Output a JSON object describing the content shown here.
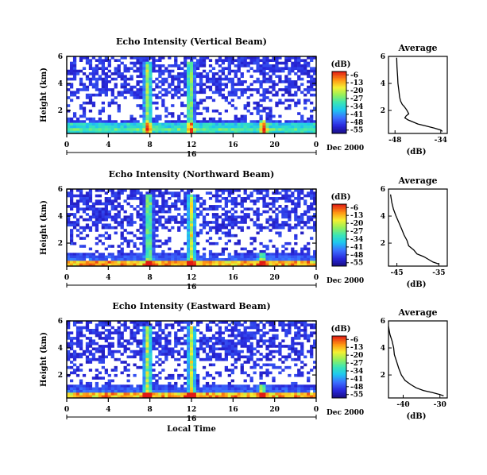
{
  "chart_data": [
    {
      "type": "heatmap",
      "title": "Echo Intensity (Vertical Beam)",
      "ylabel": "Height (km)",
      "x_ticks": [
        "0",
        "4",
        "8",
        "12",
        "16",
        "20",
        "0"
      ],
      "y_ticks": [
        "6",
        "4",
        "2"
      ],
      "xlim": [
        0,
        24
      ],
      "ylim": [
        0.3,
        6
      ],
      "date_marker": "16",
      "date_label": "Dec 2000",
      "colorbar": {
        "unit": "(dB)",
        "ticks": [
          "-6",
          "-13",
          "-20",
          "-27",
          "-34",
          "-41",
          "-48",
          "-55"
        ],
        "range": [
          -58,
          -3
        ]
      },
      "features": {
        "strong_bands_km": [
          0.55,
          0.9
        ],
        "spikes_hours": [
          7.8,
          11.9,
          18.9
        ]
      },
      "profile": {
        "title": "Average",
        "xlabel": "(dB)",
        "x_ticks": [
          "-48",
          "-34"
        ],
        "y_ticks": [
          "6",
          "4",
          "2"
        ],
        "xlim": [
          -50,
          -32
        ],
        "ylim": [
          0.3,
          6
        ],
        "points": [
          [
            -47.5,
            5.9
          ],
          [
            -47.4,
            5.2
          ],
          [
            -47.2,
            4.5
          ],
          [
            -47.1,
            4.0
          ],
          [
            -46.8,
            3.4
          ],
          [
            -46.6,
            3.0
          ],
          [
            -46.3,
            2.7
          ],
          [
            -45.8,
            2.45
          ],
          [
            -45.2,
            2.3
          ],
          [
            -44.6,
            2.1
          ],
          [
            -44.2,
            1.95
          ],
          [
            -43.8,
            1.75
          ],
          [
            -44.6,
            1.6
          ],
          [
            -45.0,
            1.45
          ],
          [
            -44.0,
            1.3
          ],
          [
            -42.5,
            1.15
          ],
          [
            -41.0,
            1.0
          ],
          [
            -38.5,
            0.85
          ],
          [
            -36.0,
            0.7
          ],
          [
            -34.0,
            0.55
          ],
          [
            -33.5,
            0.45
          ]
        ]
      }
    },
    {
      "type": "heatmap",
      "title": "Echo Intensity (Northward Beam)",
      "ylabel": "Height (km)",
      "x_ticks": [
        "0",
        "4",
        "8",
        "12",
        "16",
        "20",
        "0"
      ],
      "y_ticks": [
        "6",
        "4",
        "2"
      ],
      "xlim": [
        0,
        24
      ],
      "ylim": [
        0.3,
        6
      ],
      "date_marker": "16",
      "date_label": "Dec 2000",
      "colorbar": {
        "unit": "(dB)",
        "ticks": [
          "-6",
          "-13",
          "-20",
          "-27",
          "-34",
          "-41",
          "-48",
          "-55"
        ],
        "range": [
          -58,
          -3
        ]
      },
      "features": {
        "strong_bands_km": [
          0.5
        ],
        "spikes_hours": [
          7.9,
          12.0,
          18.8
        ]
      },
      "profile": {
        "title": "Average",
        "xlabel": "(dB)",
        "x_ticks": [
          "-45",
          "-35"
        ],
        "y_ticks": [
          "6",
          "4",
          "2"
        ],
        "xlim": [
          -47,
          -33
        ],
        "ylim": [
          0.3,
          6
        ],
        "points": [
          [
            -46.5,
            5.6
          ],
          [
            -46.2,
            5.0
          ],
          [
            -45.8,
            4.5
          ],
          [
            -45.2,
            4.0
          ],
          [
            -44.5,
            3.5
          ],
          [
            -43.8,
            3.0
          ],
          [
            -43.3,
            2.6
          ],
          [
            -42.6,
            2.2
          ],
          [
            -42.2,
            1.8
          ],
          [
            -41.0,
            1.5
          ],
          [
            -40.2,
            1.2
          ],
          [
            -38.6,
            1.0
          ],
          [
            -37.5,
            0.8
          ],
          [
            -36.4,
            0.6
          ],
          [
            -35.0,
            0.45
          ]
        ]
      }
    },
    {
      "type": "heatmap",
      "title": "Echo Intensity (Eastward Beam)",
      "ylabel": "Height (km)",
      "x_ticks": [
        "0",
        "4",
        "8",
        "12",
        "16",
        "20",
        "0"
      ],
      "y_ticks": [
        "6",
        "4",
        "2"
      ],
      "xlim": [
        0,
        24
      ],
      "ylim": [
        0.3,
        6
      ],
      "date_marker": "16",
      "date_label": "Dec 2000",
      "xlabel": "Local Time",
      "colorbar": {
        "unit": "(dB)",
        "ticks": [
          "-6",
          "-13",
          "-20",
          "-27",
          "-34",
          "-41",
          "-48",
          "-55"
        ],
        "range": [
          -58,
          -3
        ]
      },
      "features": {
        "strong_bands_km": [
          0.5
        ],
        "spikes_hours": [
          7.8,
          12.0,
          18.8
        ]
      },
      "profile": {
        "title": "Average",
        "xlabel": "(dB)",
        "x_ticks": [
          "-40",
          "-30"
        ],
        "y_ticks": [
          "6",
          "4",
          "2"
        ],
        "xlim": [
          -44,
          -28
        ],
        "ylim": [
          0.3,
          6
        ],
        "points": [
          [
            -44.0,
            5.6
          ],
          [
            -43.6,
            5.0
          ],
          [
            -43.0,
            4.5
          ],
          [
            -42.6,
            4.0
          ],
          [
            -42.4,
            3.5
          ],
          [
            -41.8,
            3.0
          ],
          [
            -41.2,
            2.5
          ],
          [
            -40.5,
            2.0
          ],
          [
            -39.5,
            1.6
          ],
          [
            -38.0,
            1.3
          ],
          [
            -36.5,
            1.05
          ],
          [
            -34.5,
            0.85
          ],
          [
            -32.0,
            0.7
          ],
          [
            -30.0,
            0.55
          ],
          [
            -29.0,
            0.45
          ]
        ]
      }
    }
  ]
}
